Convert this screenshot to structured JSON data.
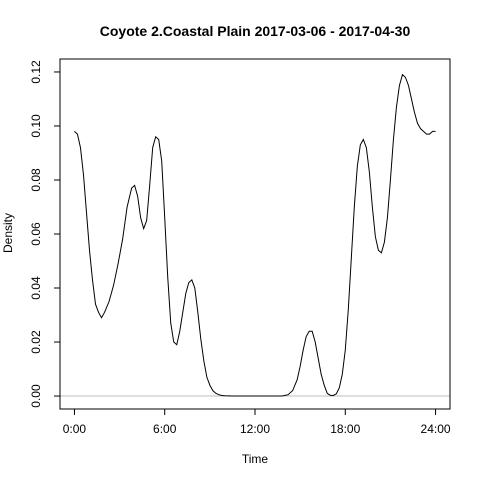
{
  "chart_data": {
    "type": "line",
    "title": "Coyote 2.Coastal Plain 2017-03-06 - 2017-04-30",
    "xlabel": "Time",
    "ylabel": "Density",
    "x_ticks": [
      {
        "value": 0,
        "label": "0:00"
      },
      {
        "value": 6,
        "label": "6:00"
      },
      {
        "value": 12,
        "label": "12:00"
      },
      {
        "value": 18,
        "label": "18:00"
      },
      {
        "value": 24,
        "label": "24:00"
      }
    ],
    "y_ticks": [
      {
        "value": 0.0,
        "label": "0.00"
      },
      {
        "value": 0.02,
        "label": "0.02"
      },
      {
        "value": 0.04,
        "label": "0.04"
      },
      {
        "value": 0.06,
        "label": "0.06"
      },
      {
        "value": 0.08,
        "label": "0.08"
      },
      {
        "value": 0.1,
        "label": "0.10"
      },
      {
        "value": 0.12,
        "label": "0.12"
      }
    ],
    "xlim": [
      -0.96,
      24.96
    ],
    "ylim": [
      -0.0048,
      0.1248
    ],
    "baseline": 0,
    "grid": false,
    "colors": {
      "line": "#000000",
      "baseline": "#bebebe",
      "frame": "#000000"
    },
    "series": [
      {
        "x": [
          0,
          0.2,
          0.4,
          0.6,
          0.8,
          1.0,
          1.2,
          1.4,
          1.6,
          1.8,
          2.0,
          2.3,
          2.6,
          2.9,
          3.2,
          3.5,
          3.8,
          4.0,
          4.2,
          4.4,
          4.6,
          4.8,
          5.0,
          5.2,
          5.4,
          5.6,
          5.8,
          6.0,
          6.2,
          6.4,
          6.6,
          6.8,
          7.0,
          7.2,
          7.4,
          7.6,
          7.8,
          8.0,
          8.2,
          8.4,
          8.6,
          8.8,
          9.0,
          9.2,
          9.4,
          9.6,
          9.8,
          10.0,
          10.5,
          11.0,
          12.0,
          13.0,
          13.8,
          14.2,
          14.5,
          14.8,
          15.0,
          15.2,
          15.4,
          15.6,
          15.8,
          16.0,
          16.2,
          16.4,
          16.6,
          16.8,
          17.0,
          17.2,
          17.4,
          17.6,
          17.8,
          18.0,
          18.2,
          18.4,
          18.6,
          18.8,
          19.0,
          19.2,
          19.4,
          19.6,
          19.8,
          20.0,
          20.2,
          20.4,
          20.6,
          20.8,
          21.0,
          21.2,
          21.4,
          21.6,
          21.8,
          22.0,
          22.2,
          22.4,
          22.6,
          22.8,
          23.0,
          23.2,
          23.4,
          23.6,
          23.8,
          24.0
        ],
        "y": [
          0.098,
          0.097,
          0.092,
          0.082,
          0.068,
          0.054,
          0.043,
          0.034,
          0.031,
          0.029,
          0.031,
          0.035,
          0.041,
          0.049,
          0.058,
          0.07,
          0.077,
          0.078,
          0.074,
          0.066,
          0.062,
          0.065,
          0.078,
          0.092,
          0.096,
          0.095,
          0.087,
          0.066,
          0.044,
          0.027,
          0.02,
          0.019,
          0.024,
          0.031,
          0.038,
          0.042,
          0.043,
          0.04,
          0.031,
          0.021,
          0.013,
          0.007,
          0.004,
          0.002,
          0.001,
          0.0005,
          0.0002,
          0.0001,
          0,
          0,
          0,
          0,
          0,
          0.0005,
          0.002,
          0.006,
          0.011,
          0.017,
          0.022,
          0.024,
          0.024,
          0.02,
          0.014,
          0.008,
          0.004,
          0.001,
          0.0003,
          0.0002,
          0.0008,
          0.003,
          0.008,
          0.017,
          0.032,
          0.051,
          0.07,
          0.085,
          0.093,
          0.095,
          0.092,
          0.083,
          0.07,
          0.059,
          0.054,
          0.053,
          0.057,
          0.066,
          0.08,
          0.095,
          0.107,
          0.115,
          0.119,
          0.118,
          0.115,
          0.11,
          0.105,
          0.101,
          0.099,
          0.098,
          0.097,
          0.097,
          0.098,
          0.098
        ]
      }
    ]
  }
}
